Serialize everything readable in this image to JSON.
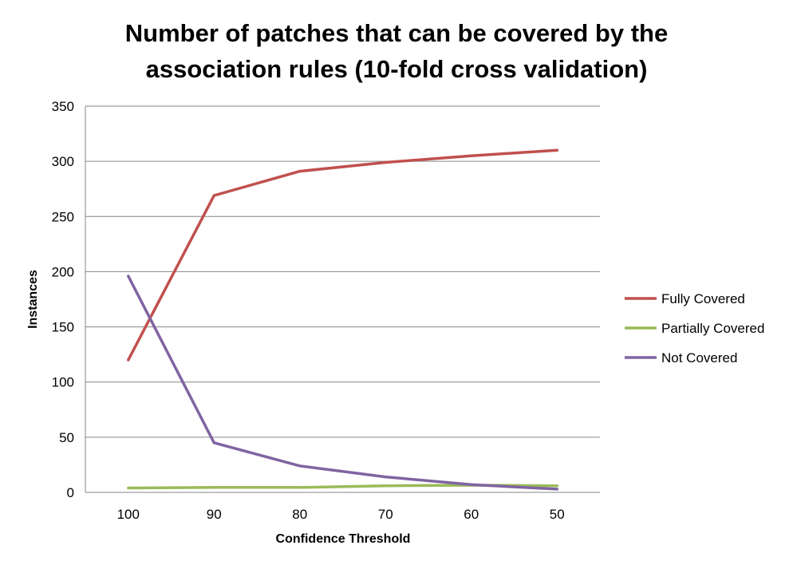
{
  "chart_data": {
    "type": "line",
    "title_lines": [
      "Number of patches that can be covered by the",
      "association rules (10-fold cross validation)"
    ],
    "xlabel": "Confidence Threshold",
    "ylabel": "Instances",
    "categories": [
      "100",
      "90",
      "80",
      "70",
      "60",
      "50"
    ],
    "ylim": [
      0,
      350
    ],
    "yticks": [
      "0",
      "50",
      "100",
      "150",
      "200",
      "250",
      "300",
      "350"
    ],
    "grid": true,
    "legend_position": "right",
    "series": [
      {
        "name": "Fully Covered",
        "color": "#c0504d",
        "values": [
          120,
          269,
          291,
          299,
          305,
          310
        ]
      },
      {
        "name": "Partially Covered",
        "color": "#9bbb59",
        "values": [
          4,
          4.5,
          4.5,
          6,
          6.5,
          6
        ]
      },
      {
        "name": "Not Covered",
        "color": "#8064a2",
        "values": [
          196,
          45,
          24,
          14,
          7,
          3
        ]
      }
    ]
  }
}
